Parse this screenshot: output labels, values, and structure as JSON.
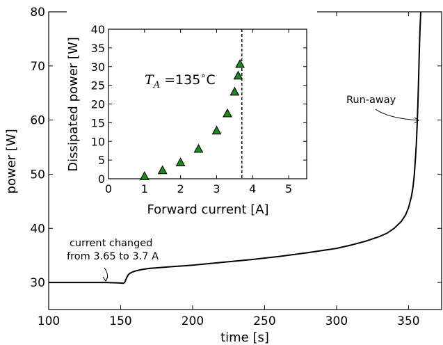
{
  "chart_data": [
    {
      "type": "line",
      "xlabel": "time [s]",
      "ylabel": "power [W]",
      "xlim": [
        100,
        373
      ],
      "ylim": [
        25,
        80
      ],
      "xticks": [
        "100",
        "150",
        "200",
        "250",
        "300",
        "350"
      ],
      "yticks": [
        "30",
        "40",
        "50",
        "60",
        "70",
        "80"
      ],
      "grid": false,
      "series": [
        {
          "x": [
            100,
            120,
            140,
            150,
            152,
            153,
            154,
            155,
            156,
            158,
            160,
            165,
            170,
            180,
            190,
            200,
            220,
            240,
            260,
            280,
            300,
            310,
            320,
            330,
            335,
            340,
            345,
            348,
            350,
            352,
            353,
            354,
            355,
            355.5,
            356,
            356.5,
            357,
            357.5,
            358,
            358.5
          ],
          "y": [
            30.0,
            30.0,
            30.0,
            29.9,
            29.85,
            30.1,
            30.8,
            31.3,
            31.6,
            31.9,
            32.1,
            32.4,
            32.6,
            32.8,
            33.0,
            33.2,
            33.7,
            34.2,
            34.8,
            35.5,
            36.3,
            36.9,
            37.6,
            38.5,
            39.1,
            40.0,
            41.3,
            42.5,
            43.8,
            45.8,
            47.4,
            49.8,
            53.5,
            56.0,
            59.0,
            63.0,
            67.5,
            72.5,
            77.0,
            80.0
          ],
          "color": "#000000"
        }
      ],
      "annotations": [
        {
          "text": "current changed\nfrom 3.65 to 3.7 A",
          "target": [
            152,
            30
          ]
        },
        {
          "text": "Run-away",
          "target": [
            357,
            60
          ]
        }
      ]
    },
    {
      "type": "scatter",
      "xlabel": "Forward current [A]",
      "ylabel": "Dissipated power [W]",
      "xlim": [
        0,
        5.5
      ],
      "ylim": [
        0,
        40
      ],
      "xticks": [
        "0",
        "1",
        "2",
        "3",
        "4",
        "5"
      ],
      "yticks": [
        "0",
        "5",
        "10",
        "15",
        "20",
        "25",
        "30",
        "35",
        "40"
      ],
      "grid": false,
      "marker": "triangle",
      "marker_color": "#1a8c1a",
      "series": [
        {
          "x": [
            1.0,
            1.5,
            2.0,
            2.5,
            3.0,
            3.3,
            3.5,
            3.6,
            3.65
          ],
          "y": [
            0.6,
            2.2,
            4.3,
            7.9,
            12.8,
            17.4,
            23.2,
            27.5,
            30.6
          ]
        }
      ],
      "vline": {
        "x": 3.7,
        "style": "dashed"
      },
      "annotation": {
        "symbol": "T",
        "subscript": "A",
        "text": " =135",
        "degree": "∘",
        "unit": "C"
      }
    }
  ]
}
